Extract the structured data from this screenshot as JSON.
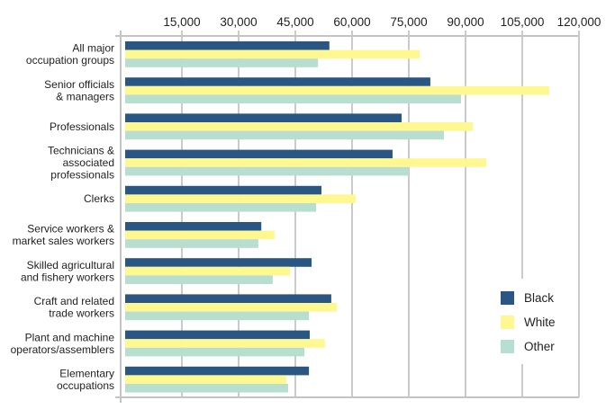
{
  "chart_data": {
    "type": "bar",
    "orientation": "horizontal",
    "title": "",
    "xlabel": "",
    "ylabel": "",
    "xlim": [
      0,
      120000
    ],
    "x_ticks": [
      15000,
      30000,
      45000,
      60000,
      75000,
      90000,
      105000,
      120000
    ],
    "x_tick_labels": [
      "15,000",
      "30,000",
      "45,000",
      "60,000",
      "75,000",
      "90,000",
      "105,000",
      "120,000"
    ],
    "x_tick_position": "top",
    "grid": true,
    "legend_position": "bottom-right",
    "categories": [
      [
        "All major",
        "occupation groups"
      ],
      [
        "Senior officials",
        "& managers"
      ],
      [
        "Professionals"
      ],
      [
        "Technicians &",
        "associated",
        "professionals"
      ],
      [
        "Clerks"
      ],
      [
        "Service workers &",
        "market sales workers"
      ],
      [
        "Skilled agricultural",
        "and fishery workers"
      ],
      [
        "Craft and related",
        "trade workers"
      ],
      [
        "Plant and machine",
        "operators/assemblers"
      ],
      [
        "Elementary",
        "occupations"
      ]
    ],
    "series": [
      {
        "name": "Black",
        "color": "#2a5683",
        "values": [
          54000,
          80700,
          73100,
          70700,
          51900,
          36000,
          49300,
          54500,
          48800,
          48600
        ]
      },
      {
        "name": "White",
        "color": "#fff78f",
        "values": [
          77900,
          112100,
          91900,
          95500,
          61000,
          39500,
          43600,
          56000,
          52800,
          42600
        ]
      },
      {
        "name": "Other",
        "color": "#b7dece",
        "values": [
          51000,
          88800,
          84300,
          75000,
          50500,
          35200,
          39000,
          48600,
          47400,
          43100
        ]
      }
    ]
  }
}
